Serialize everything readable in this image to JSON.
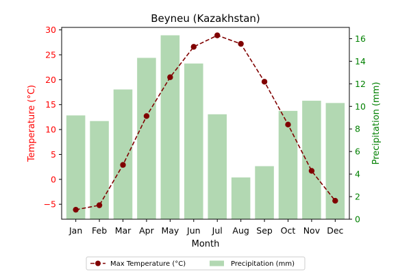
{
  "chart_data": {
    "type": "bar+line",
    "title": "Beyneu (Kazakhstan)",
    "xlabel": "Month",
    "categories": [
      "Jan",
      "Feb",
      "Mar",
      "Apr",
      "May",
      "Jun",
      "Jul",
      "Aug",
      "Sep",
      "Oct",
      "Nov",
      "Dec"
    ],
    "y_left": {
      "label": "Temperature (°C)",
      "lim": [
        -8,
        30.5
      ],
      "ticks": [
        -5,
        0,
        5,
        10,
        15,
        20,
        25,
        30
      ],
      "color": "#ff0000"
    },
    "y_right": {
      "label": "Precipitation (mm)",
      "lim": [
        0,
        17
      ],
      "ticks": [
        0,
        2,
        4,
        6,
        8,
        10,
        12,
        14,
        16
      ],
      "color": "#008000"
    },
    "series": [
      {
        "name": "Max Temperature (°C)",
        "type": "line",
        "axis": "left",
        "color": "#800000",
        "values": [
          -6.1,
          -5.2,
          2.9,
          12.7,
          20.5,
          26.6,
          28.9,
          27.2,
          19.6,
          11.0,
          1.7,
          -4.3
        ]
      },
      {
        "name": "Precipitation (mm)",
        "type": "bar",
        "axis": "right",
        "color": "#b2d8b2",
        "values": [
          9.2,
          8.7,
          11.5,
          14.3,
          16.3,
          13.8,
          9.3,
          3.7,
          4.7,
          9.6,
          10.5,
          10.3
        ]
      }
    ],
    "legend": {
      "position": "bottom-center",
      "columns": 2
    },
    "grid": false
  }
}
